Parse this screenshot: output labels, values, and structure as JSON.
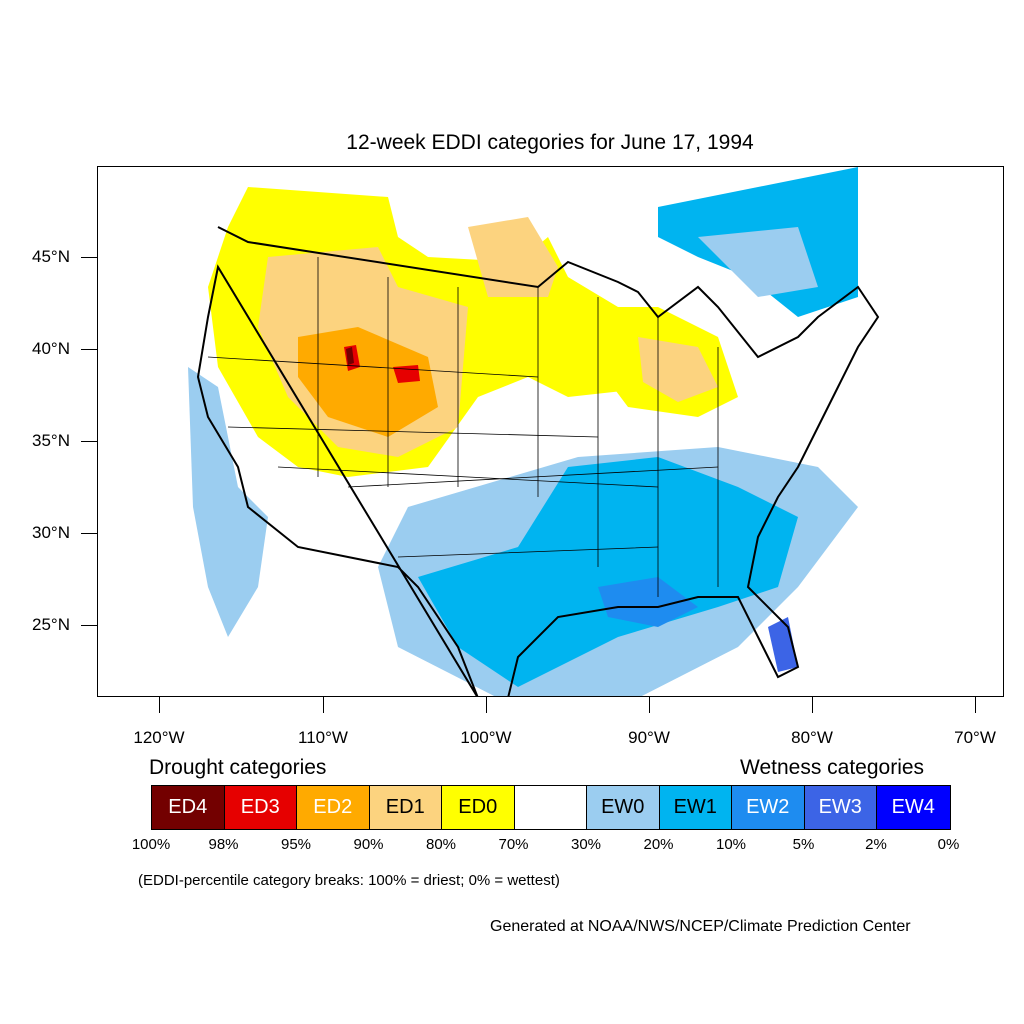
{
  "title": "12-week EDDI categories for June 17, 1994",
  "latitude_labels": [
    "45°N",
    "40°N",
    "35°N",
    "30°N",
    "25°N"
  ],
  "longitude_labels": [
    "120°W",
    "110°W",
    "100°W",
    "90°W",
    "80°W",
    "70°W"
  ],
  "legend": {
    "drought_heading": "Drought categories",
    "wetness_heading": "Wetness categories",
    "categories": [
      {
        "label": "ED4",
        "color": "#730000",
        "text_color": "#ffffff"
      },
      {
        "label": "ED3",
        "color": "#e60000",
        "text_color": "#ffffff"
      },
      {
        "label": "ED2",
        "color": "#ffaa00",
        "text_color": "#ffffff"
      },
      {
        "label": "ED1",
        "color": "#fcd37f",
        "text_color": "#000000"
      },
      {
        "label": "ED0",
        "color": "#ffff00",
        "text_color": "#000000"
      },
      {
        "label": "",
        "color": "#ffffff",
        "text_color": "#000000"
      },
      {
        "label": "EW0",
        "color": "#9bcdf0",
        "text_color": "#000000"
      },
      {
        "label": "EW1",
        "color": "#00b4f0",
        "text_color": "#000000"
      },
      {
        "label": "EW2",
        "color": "#1e8cf0",
        "text_color": "#ffffff"
      },
      {
        "label": "EW3",
        "color": "#3c64e6",
        "text_color": "#ffffff"
      },
      {
        "label": "EW4",
        "color": "#0000ff",
        "text_color": "#ffffff"
      }
    ],
    "percent_breaks": [
      "100%",
      "98%",
      "95%",
      "90%",
      "80%",
      "70%",
      "30%",
      "20%",
      "10%",
      "5%",
      "2%",
      "0%"
    ]
  },
  "note": "(EDDI-percentile category breaks: 100% = driest; 0% = wettest)",
  "credit": "Generated at NOAA/NWS/NCEP/Climate Prediction Center"
}
